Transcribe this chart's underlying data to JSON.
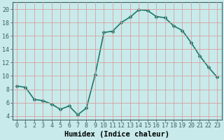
{
  "x": [
    0,
    1,
    2,
    3,
    4,
    5,
    6,
    7,
    8,
    9,
    10,
    11,
    12,
    13,
    14,
    15,
    16,
    17,
    18,
    19,
    20,
    21,
    22,
    23
  ],
  "y": [
    8.5,
    8.3,
    6.5,
    6.3,
    5.8,
    5.0,
    5.5,
    4.2,
    5.2,
    10.2,
    16.5,
    16.7,
    18.0,
    18.8,
    19.9,
    19.8,
    18.9,
    18.7,
    17.5,
    16.8,
    15.0,
    13.0,
    11.3,
    9.8
  ],
  "line_color": "#1a7a6e",
  "marker": "D",
  "marker_size": 2.5,
  "bg_color": "#c8eaea",
  "grid_color": "#d8a0a0",
  "xlabel": "Humidex (Indice chaleur)",
  "xlim": [
    -0.5,
    23.5
  ],
  "ylim": [
    3.5,
    21.0
  ],
  "xticks": [
    0,
    1,
    2,
    3,
    4,
    5,
    6,
    7,
    8,
    9,
    10,
    11,
    12,
    13,
    14,
    15,
    16,
    17,
    18,
    19,
    20,
    21,
    22,
    23
  ],
  "yticks": [
    4,
    6,
    8,
    10,
    12,
    14,
    16,
    18,
    20
  ],
  "tick_fontsize": 6,
  "label_fontsize": 7.5,
  "linewidth": 1.2,
  "spine_color": "#406060"
}
